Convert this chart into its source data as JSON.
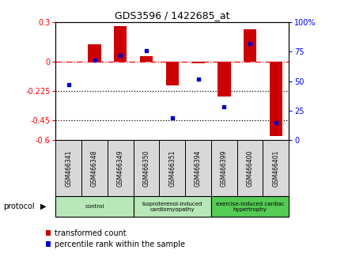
{
  "title": "GDS3596 / 1422685_at",
  "samples": [
    "GSM466341",
    "GSM466348",
    "GSM466349",
    "GSM466350",
    "GSM466351",
    "GSM466394",
    "GSM466399",
    "GSM466400",
    "GSM466401"
  ],
  "red_values": [
    0.0,
    0.13,
    0.27,
    0.04,
    -0.18,
    -0.01,
    -0.27,
    0.25,
    -0.57
  ],
  "blue_values": [
    47,
    68,
    72,
    76,
    19,
    52,
    28,
    82,
    15
  ],
  "ylim_left": [
    -0.6,
    0.3
  ],
  "ylim_right": [
    0,
    100
  ],
  "yticks_left": [
    0.3,
    0.0,
    -0.225,
    -0.45,
    -0.6
  ],
  "yticks_left_labels": [
    "0.3",
    "0",
    "-0.225",
    "-0.45",
    "-0.6"
  ],
  "yticks_right": [
    100,
    75,
    50,
    25,
    0
  ],
  "yticks_right_labels": [
    "100%",
    "75",
    "50",
    "25",
    "0"
  ],
  "red_color": "#CC0000",
  "blue_color": "#0000CC",
  "protocol_groups": [
    {
      "label": "control",
      "start": 0,
      "end": 2,
      "color": "#b8e8b8"
    },
    {
      "label": "isoproterenol-induced\ncardiomyopathy",
      "start": 3,
      "end": 5,
      "color": "#b8e8b8"
    },
    {
      "label": "exercise-induced cardiac\nhypertrophy",
      "start": 6,
      "end": 8,
      "color": "#55cc55"
    }
  ],
  "legend_red_label": "transformed count",
  "legend_blue_label": "percentile rank within the sample",
  "bar_width": 0.5
}
